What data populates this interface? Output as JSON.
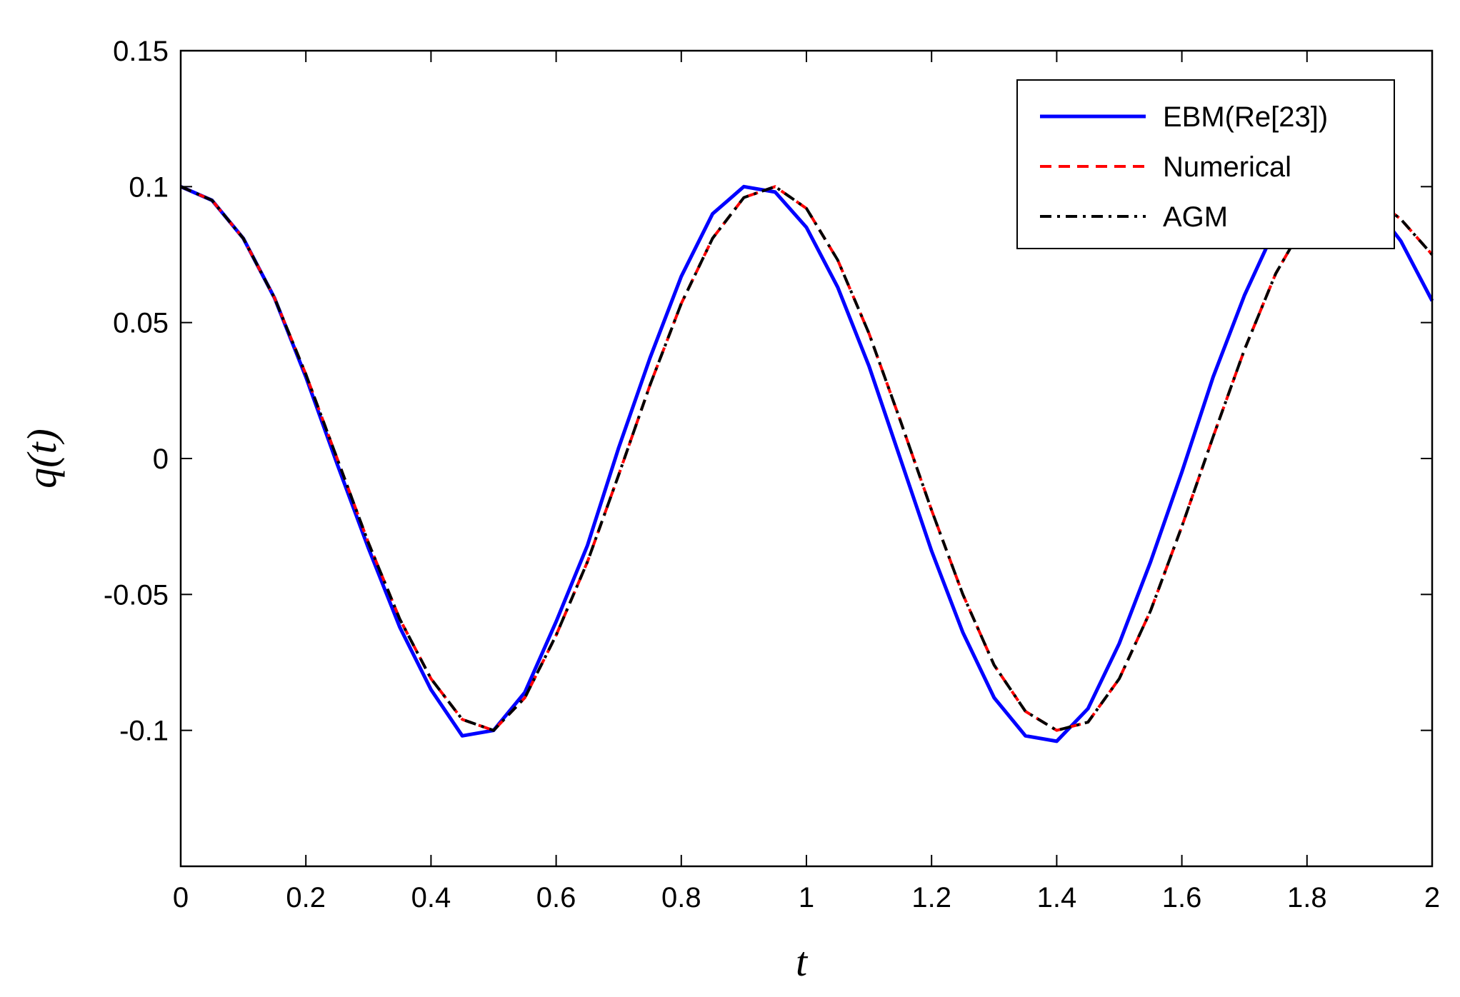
{
  "chart_data": {
    "type": "line",
    "title": "",
    "xlabel": "t",
    "ylabel": "q(t)",
    "xlim": [
      0,
      2
    ],
    "ylim": [
      -0.15,
      0.15
    ],
    "x_ticks": [
      0,
      0.2,
      0.4,
      0.6,
      0.8,
      1,
      1.2,
      1.4,
      1.6,
      1.8,
      2
    ],
    "x_tick_labels": [
      "0",
      "0.2",
      "0.4",
      "0.6",
      "0.8",
      "1",
      "1.2",
      "1.4",
      "1.6",
      "1.8",
      "2"
    ],
    "y_ticks": [
      0.15,
      0.1,
      0.05,
      0,
      -0.05,
      -0.1
    ],
    "y_tick_labels": [
      "0.15",
      "0.1",
      "0.05",
      "0",
      "-0.05",
      "-0.1"
    ],
    "grid": false,
    "legend_position": "top-right",
    "series": [
      {
        "name": "EBM(Re[23])",
        "color": "#0000ff",
        "style": "solid",
        "x": [
          0,
          0.05,
          0.1,
          0.15,
          0.2,
          0.25,
          0.3,
          0.35,
          0.4,
          0.45,
          0.5,
          0.55,
          0.6,
          0.65,
          0.7,
          0.75,
          0.8,
          0.85,
          0.9,
          0.95,
          1.0,
          1.05,
          1.1,
          1.15,
          1.2,
          1.25,
          1.3,
          1.35,
          1.4,
          1.45,
          1.5,
          1.55,
          1.6,
          1.65,
          1.7,
          1.75,
          1.8,
          1.85,
          1.9,
          1.95,
          2.0
        ],
        "y": [
          0.1,
          0.095,
          0.081,
          0.059,
          0.03,
          -0.002,
          -0.033,
          -0.062,
          -0.085,
          -0.102,
          -0.1,
          -0.086,
          -0.06,
          -0.032,
          0.004,
          0.037,
          0.067,
          0.09,
          0.1,
          0.098,
          0.085,
          0.063,
          0.034,
          0.0,
          -0.034,
          -0.064,
          -0.088,
          -0.102,
          -0.104,
          -0.092,
          -0.068,
          -0.038,
          -0.005,
          0.03,
          0.06,
          0.085,
          0.1,
          0.103,
          0.095,
          0.08,
          0.058
        ]
      },
      {
        "name": "Numerical",
        "color": "#ff0000",
        "style": "dashed",
        "x": [
          0,
          0.05,
          0.1,
          0.15,
          0.2,
          0.25,
          0.3,
          0.35,
          0.4,
          0.45,
          0.5,
          0.55,
          0.6,
          0.65,
          0.7,
          0.75,
          0.8,
          0.85,
          0.9,
          0.95,
          1.0,
          1.05,
          1.1,
          1.15,
          1.2,
          1.25,
          1.3,
          1.35,
          1.4,
          1.45,
          1.5,
          1.55,
          1.6,
          1.65,
          1.7,
          1.75,
          1.8,
          1.85,
          1.9,
          1.95,
          2.0
        ],
        "y": [
          0.1,
          0.095,
          0.081,
          0.059,
          0.031,
          0.0,
          -0.031,
          -0.059,
          -0.081,
          -0.096,
          -0.1,
          -0.088,
          -0.065,
          -0.038,
          -0.006,
          0.027,
          0.057,
          0.081,
          0.096,
          0.1,
          0.092,
          0.073,
          0.046,
          0.014,
          -0.019,
          -0.05,
          -0.076,
          -0.093,
          -0.1,
          -0.097,
          -0.081,
          -0.056,
          -0.025,
          0.008,
          0.04,
          0.068,
          0.088,
          0.098,
          0.097,
          0.088,
          0.075
        ]
      },
      {
        "name": "AGM",
        "color": "#000000",
        "style": "dash-dot",
        "x": [
          0,
          0.05,
          0.1,
          0.15,
          0.2,
          0.25,
          0.3,
          0.35,
          0.4,
          0.45,
          0.5,
          0.55,
          0.6,
          0.65,
          0.7,
          0.75,
          0.8,
          0.85,
          0.9,
          0.95,
          1.0,
          1.05,
          1.1,
          1.15,
          1.2,
          1.25,
          1.3,
          1.35,
          1.4,
          1.45,
          1.5,
          1.55,
          1.6,
          1.65,
          1.7,
          1.75,
          1.8,
          1.85,
          1.9,
          1.95,
          2.0
        ],
        "y": [
          0.1,
          0.095,
          0.081,
          0.059,
          0.031,
          0.0,
          -0.031,
          -0.059,
          -0.081,
          -0.096,
          -0.1,
          -0.088,
          -0.065,
          -0.038,
          -0.006,
          0.027,
          0.057,
          0.081,
          0.096,
          0.1,
          0.092,
          0.073,
          0.046,
          0.014,
          -0.019,
          -0.05,
          -0.076,
          -0.093,
          -0.1,
          -0.097,
          -0.081,
          -0.056,
          -0.025,
          0.008,
          0.04,
          0.068,
          0.088,
          0.098,
          0.097,
          0.088,
          0.075
        ]
      }
    ]
  }
}
